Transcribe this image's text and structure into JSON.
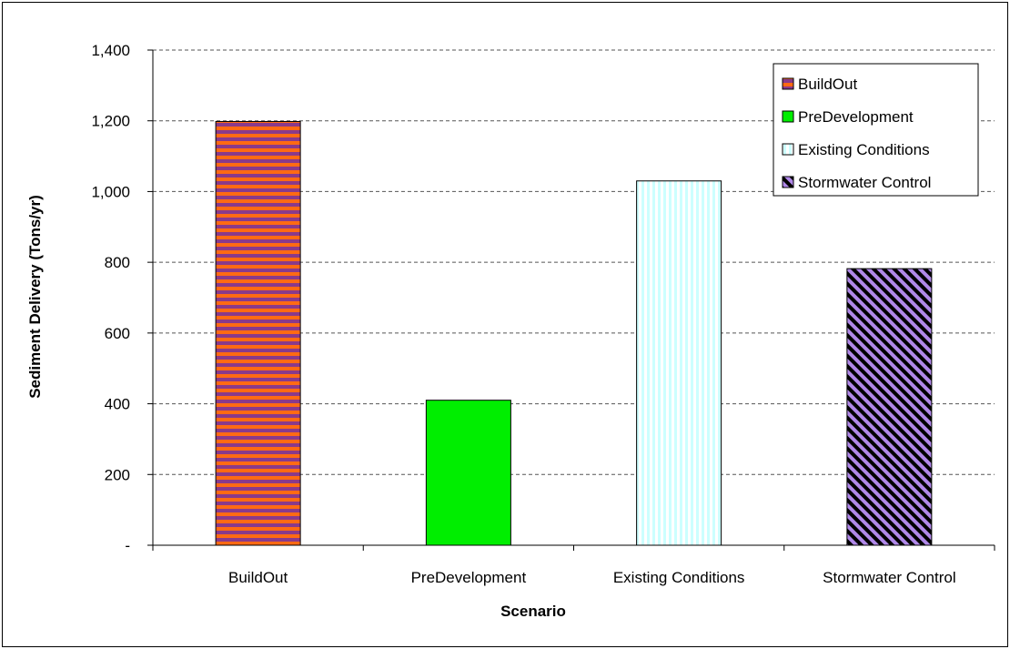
{
  "chart_data": {
    "type": "bar",
    "categories": [
      "BuildOut",
      "PreDevelopment",
      "Existing Conditions",
      "Stormwater Control"
    ],
    "values": [
      1198,
      410,
      1030,
      782
    ],
    "xlabel": "Scenario",
    "ylabel": "Sediment Delivery (Tons/yr)",
    "ylim": [
      0,
      1400
    ],
    "yticks": [
      0,
      200,
      400,
      600,
      800,
      1000,
      1200,
      1400
    ],
    "ytick_labels": [
      "-",
      "200",
      "400",
      "600",
      "800",
      "1,000",
      "1,200",
      "1,400"
    ],
    "grid": "horizontal dashed",
    "legend_position": "top-right",
    "series_styles": [
      {
        "name": "BuildOut",
        "pattern": "horizontal-stripes",
        "colors": [
          "#ff6a13",
          "#8a3a8a"
        ]
      },
      {
        "name": "PreDevelopment",
        "pattern": "solid",
        "colors": [
          "#00ee00"
        ]
      },
      {
        "name": "Existing Conditions",
        "pattern": "vertical-stripes",
        "colors": [
          "#ccffff",
          "#ffffff"
        ]
      },
      {
        "name": "Stormwater Control",
        "pattern": "diagonal-stripes",
        "colors": [
          "#b088e8",
          "#000000"
        ]
      }
    ]
  }
}
